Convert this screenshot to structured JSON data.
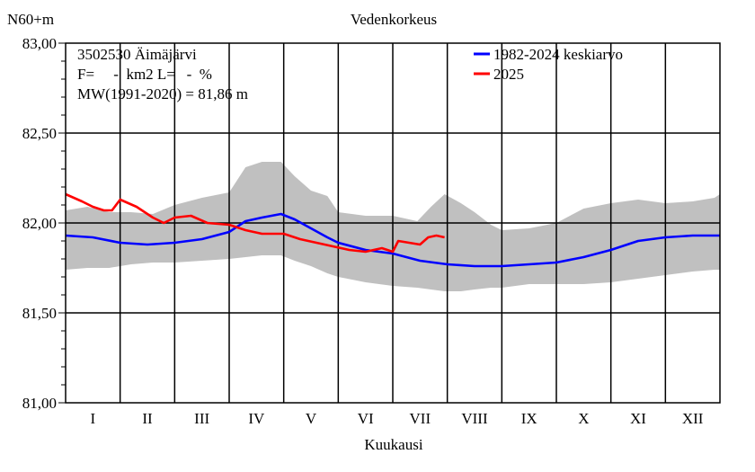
{
  "chart_data": {
    "type": "line",
    "title": "Vedenkorkeus",
    "ylabel": "N60+m",
    "xlabel": "Kuukausi",
    "ylim": [
      81.0,
      83.0
    ],
    "y_ticks": [
      "81,00",
      "81,50",
      "82,00",
      "82,50",
      "83,00"
    ],
    "y_tick_values": [
      81.0,
      81.5,
      82.0,
      82.5,
      83.0
    ],
    "categories": [
      "I",
      "II",
      "III",
      "IV",
      "V",
      "VI",
      "VII",
      "VIII",
      "IX",
      "X",
      "XI",
      "XII"
    ],
    "xlim": [
      0,
      12
    ],
    "grid": true,
    "info_lines": [
      "3502530 Äimäjärvi",
      "F=     -  km2 L=   -  %",
      "MW(1991-2020) = 81,86 m"
    ],
    "band": {
      "name": "",
      "color": "#c0c0c0",
      "x": [
        0,
        0.4,
        0.8,
        1.2,
        1.6,
        2.0,
        2.5,
        3.0,
        3.3,
        3.6,
        3.95,
        4.2,
        4.5,
        4.8,
        5.0,
        5.5,
        6.0,
        6.45,
        6.7,
        6.95,
        7.25,
        7.5,
        7.8,
        8.0,
        8.5,
        9.0,
        9.5,
        10.0,
        10.5,
        11.0,
        11.5,
        11.9,
        12.0
      ],
      "upper": [
        82.07,
        82.09,
        82.06,
        82.06,
        82.05,
        82.1,
        82.14,
        82.17,
        82.31,
        82.34,
        82.34,
        82.26,
        82.18,
        82.15,
        82.06,
        82.04,
        82.04,
        82.01,
        82.09,
        82.16,
        82.11,
        82.06,
        81.99,
        81.96,
        81.97,
        82.0,
        82.08,
        82.11,
        82.13,
        82.11,
        82.12,
        82.14,
        82.16
      ],
      "lower": [
        81.74,
        81.75,
        81.75,
        81.77,
        81.78,
        81.78,
        81.79,
        81.8,
        81.81,
        81.82,
        81.82,
        81.79,
        81.76,
        81.72,
        81.7,
        81.67,
        81.65,
        81.64,
        81.63,
        81.62,
        81.62,
        81.63,
        81.64,
        81.64,
        81.66,
        81.66,
        81.66,
        81.67,
        81.69,
        81.71,
        81.73,
        81.74,
        81.74
      ]
    },
    "series": [
      {
        "name": "1982-2024 keskiarvo",
        "color": "#0000ff",
        "x": [
          0,
          0.5,
          1.0,
          1.5,
          2.0,
          2.5,
          3.0,
          3.3,
          3.6,
          3.95,
          4.2,
          4.5,
          4.8,
          5.0,
          5.5,
          6.0,
          6.5,
          7.0,
          7.5,
          8.0,
          8.5,
          9.0,
          9.5,
          10.0,
          10.5,
          11.0,
          11.5,
          12.0
        ],
        "values": [
          81.93,
          81.92,
          81.89,
          81.88,
          81.89,
          81.91,
          81.95,
          82.01,
          82.03,
          82.05,
          82.02,
          81.97,
          81.92,
          81.89,
          81.85,
          81.83,
          81.79,
          81.77,
          81.76,
          81.76,
          81.77,
          81.78,
          81.81,
          81.85,
          81.9,
          81.92,
          81.93,
          81.93
        ]
      },
      {
        "name": "2025",
        "color": "#ff0000",
        "x": [
          0,
          0.3,
          0.5,
          0.7,
          0.85,
          1.0,
          1.3,
          1.6,
          1.8,
          2.0,
          2.3,
          2.6,
          3.0,
          3.3,
          3.6,
          4.0,
          4.3,
          4.6,
          4.9,
          5.2,
          5.5,
          5.8,
          6.0,
          6.1,
          6.3,
          6.5,
          6.65,
          6.8,
          6.95
        ],
        "values": [
          82.16,
          82.12,
          82.09,
          82.07,
          82.07,
          82.13,
          82.09,
          82.03,
          82.0,
          82.03,
          82.04,
          82.0,
          81.99,
          81.96,
          81.94,
          81.94,
          81.91,
          81.89,
          81.87,
          81.85,
          81.84,
          81.86,
          81.84,
          81.9,
          81.89,
          81.88,
          81.92,
          81.93,
          81.92
        ]
      }
    ]
  }
}
